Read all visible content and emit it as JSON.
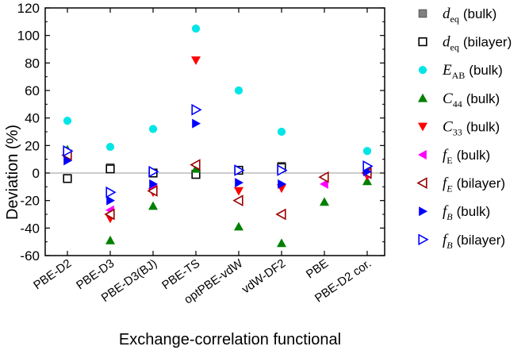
{
  "chart_data": {
    "type": "scatter",
    "title": "",
    "xlabel": "Exchange-correlation functional",
    "ylabel": "Deviation (%)",
    "ylim": [
      -60,
      120
    ],
    "yticks": [
      "-60",
      "-40",
      "-20",
      "0",
      "20",
      "40",
      "60",
      "80",
      "100",
      "120"
    ],
    "categories": [
      "PBE-D2",
      "PBE-D3",
      "PBE-D3(BJ)",
      "PBE-TS",
      "optPBE-vdW",
      "vdW-DF2",
      "PBE",
      "PBE-D2 cor."
    ],
    "grid": false,
    "reference_line": 0,
    "legend_position": "right",
    "series": [
      {
        "name": "d_eq (bulk)",
        "legend": {
          "sym": "d",
          "sub": "eq",
          "italic": true,
          "sub_italic": false,
          "suffix": "(bulk)"
        },
        "marker": "square-filled",
        "color": "#808080",
        "values": [
          -4,
          4,
          0,
          -1,
          2,
          5,
          null,
          null
        ]
      },
      {
        "name": "d_eq (bilayer)",
        "legend": {
          "sym": "d",
          "sub": "eq",
          "italic": true,
          "sub_italic": false,
          "suffix": "(bilayer)"
        },
        "marker": "square-open",
        "color": "#000000",
        "values": [
          -4,
          3,
          0,
          -1,
          2,
          4,
          null,
          null
        ]
      },
      {
        "name": "E_AB (bulk)",
        "legend": {
          "sym": "E",
          "sub": "AB",
          "italic": true,
          "sub_italic": false,
          "suffix": "(bulk)"
        },
        "marker": "circle-filled",
        "color": "#00e5e5",
        "values": [
          38,
          19,
          32,
          105,
          60,
          30,
          null,
          16
        ]
      },
      {
        "name": "C_44 (bulk)",
        "legend": {
          "sym": "C",
          "sub": "44",
          "italic": true,
          "sub_italic": false,
          "suffix": "(bulk)"
        },
        "marker": "triangle-up-filled",
        "color": "#008000",
        "values": [
          17,
          -49,
          -24,
          3,
          -39,
          -51,
          -21,
          -6
        ]
      },
      {
        "name": "C_33 (bulk)",
        "legend": {
          "sym": "C",
          "sub": "33",
          "italic": true,
          "sub_italic": false,
          "suffix": "(bulk)"
        },
        "marker": "triangle-down-filled",
        "color": "#ff0000",
        "values": [
          13,
          -33,
          -14,
          82,
          -13,
          -11,
          null,
          -2
        ]
      },
      {
        "name": "f_E (bulk)",
        "legend": {
          "sym": "f",
          "sub": "E",
          "italic": true,
          "sub_italic": false,
          "suffix": "(bulk)"
        },
        "marker": "triangle-left-filled",
        "color": "#ff00ff",
        "values": [
          12,
          -27,
          -11,
          6,
          -20,
          -30,
          -8,
          -1
        ]
      },
      {
        "name": "f_E (bilayer)",
        "legend": {
          "sym": "f",
          "sub": "E",
          "italic": true,
          "sub_italic": true,
          "suffix": "(bilayer)"
        },
        "marker": "triangle-left-open",
        "color": "#990000",
        "values": [
          13,
          -30,
          -13,
          6,
          -20,
          -30,
          -3,
          0
        ]
      },
      {
        "name": "f_B (bulk)",
        "legend": {
          "sym": "f",
          "sub": "B",
          "italic": true,
          "sub_italic": true,
          "suffix": "(bulk)"
        },
        "marker": "triangle-right-filled",
        "color": "#0000ff",
        "values": [
          9,
          -20,
          -8,
          36,
          -7,
          -8,
          null,
          1
        ]
      },
      {
        "name": "f_B (bilayer)",
        "legend": {
          "sym": "f",
          "sub": "B",
          "italic": true,
          "sub_italic": true,
          "suffix": "(bilayer)"
        },
        "marker": "triangle-right-open",
        "color": "#0000ff",
        "values": [
          16,
          -14,
          1,
          46,
          2,
          2,
          null,
          5
        ]
      }
    ]
  }
}
